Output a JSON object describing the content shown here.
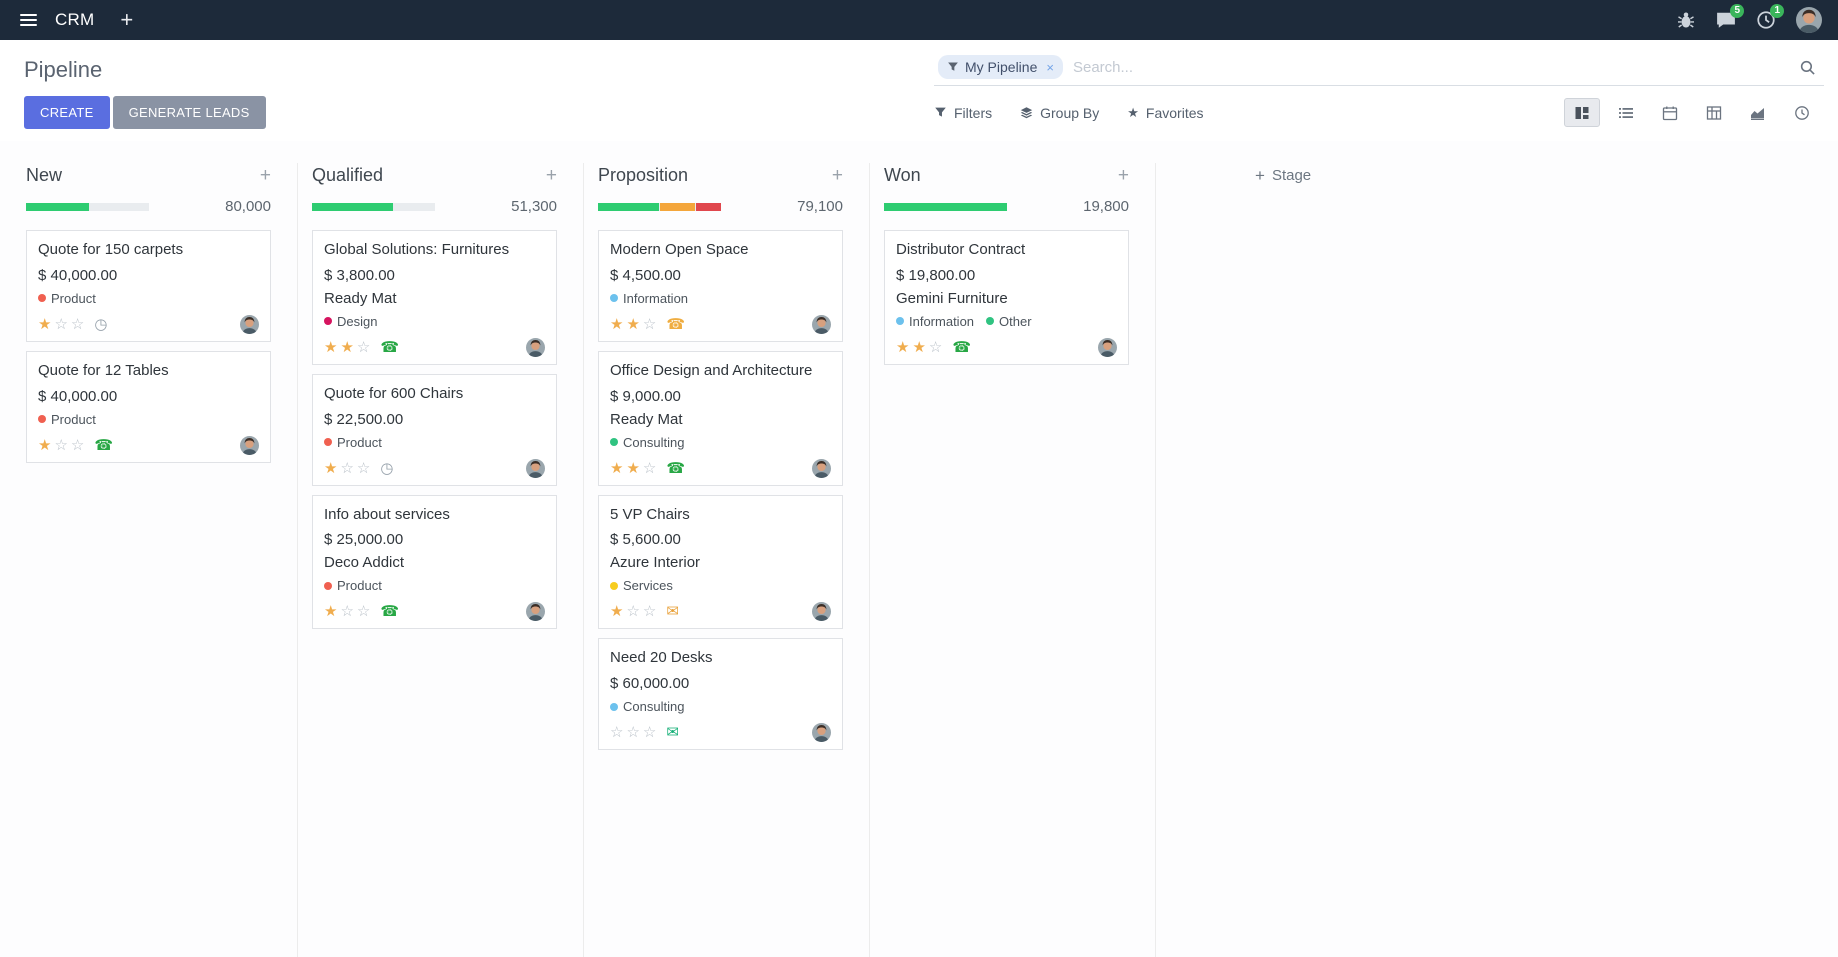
{
  "icons": {
    "plus": "+",
    "close": "×",
    "star": "★"
  },
  "colors": {
    "topbar": "#1d2a3a",
    "primary_button": "#5a6ee0",
    "secondary_button": "#8a93a4",
    "badge": "#3ab55b",
    "star_active": "#f0ad4e"
  },
  "topbar": {
    "app_name": "CRM",
    "messages_badge": "5",
    "activities_badge": "1"
  },
  "control_panel": {
    "title": "Pipeline",
    "create_label": "CREATE",
    "generate_leads_label": "GENERATE LEADS",
    "search": {
      "facet": "My Pipeline",
      "placeholder": "Search..."
    },
    "filters_label": "Filters",
    "group_by_label": "Group By",
    "favorites_label": "Favorites"
  },
  "board": {
    "add_stage_label": "Stage",
    "columns": [
      {
        "name": "New",
        "total": "80,000",
        "progress": [
          {
            "color": "#2ecc71",
            "pct": 51
          }
        ],
        "cards": [
          {
            "title": "Quote for 150 carpets",
            "amount": "$ 40,000.00",
            "tags": [
              {
                "label": "Product",
                "color": "#f06050"
              }
            ],
            "stars": 1,
            "activity": {
              "icon": "clock",
              "color": "#95a0aa"
            }
          },
          {
            "title": "Quote for 12 Tables",
            "amount": "$ 40,000.00",
            "tags": [
              {
                "label": "Product",
                "color": "#f06050"
              }
            ],
            "stars": 1,
            "activity": {
              "icon": "phone",
              "color": "#28a745"
            }
          }
        ]
      },
      {
        "name": "Qualified",
        "total": "51,300",
        "progress": [
          {
            "color": "#2ecc71",
            "pct": 66
          }
        ],
        "cards": [
          {
            "title": "Global Solutions: Furnitures",
            "amount": "$ 3,800.00",
            "partner": "Ready Mat",
            "tags": [
              {
                "label": "Design",
                "color": "#d6145f"
              }
            ],
            "stars": 2,
            "activity": {
              "icon": "phone",
              "color": "#28a745"
            }
          },
          {
            "title": "Quote for 600 Chairs",
            "amount": "$ 22,500.00",
            "tags": [
              {
                "label": "Product",
                "color": "#f06050"
              }
            ],
            "stars": 1,
            "activity": {
              "icon": "clock",
              "color": "#95a0aa"
            }
          },
          {
            "title": "Info about services",
            "amount": "$ 25,000.00",
            "partner": "Deco Addict",
            "tags": [
              {
                "label": "Product",
                "color": "#f06050"
              }
            ],
            "stars": 1,
            "activity": {
              "icon": "phone",
              "color": "#28a745"
            }
          }
        ]
      },
      {
        "name": "Proposition",
        "total": "79,100",
        "progress": [
          {
            "color": "#2ecc71",
            "pct": 50
          },
          {
            "color": "#f4a63b",
            "pct": 29
          },
          {
            "color": "#e0474d",
            "pct": 21
          }
        ],
        "cards": [
          {
            "title": "Modern Open Space",
            "amount": "$ 4,500.00",
            "tags": [
              {
                "label": "Information",
                "color": "#6cc1ed"
              }
            ],
            "stars": 2,
            "activity": {
              "icon": "phone",
              "color": "#efad41"
            }
          },
          {
            "title": "Office Design and Architecture",
            "amount": "$ 9,000.00",
            "partner": "Ready Mat",
            "tags": [
              {
                "label": "Consulting",
                "color": "#30c381"
              }
            ],
            "stars": 2,
            "activity": {
              "icon": "phone",
              "color": "#28a745"
            }
          },
          {
            "title": "5 VP Chairs",
            "amount": "$ 5,600.00",
            "partner": "Azure Interior",
            "tags": [
              {
                "label": "Services",
                "color": "#f7cd1f"
              }
            ],
            "stars": 1,
            "activity": {
              "icon": "envelope",
              "color": "#e9a23b"
            }
          },
          {
            "title": "Need 20 Desks",
            "amount": "$ 60,000.00",
            "tags": [
              {
                "label": "Consulting",
                "color": "#6cc1ed"
              }
            ],
            "stars": 0,
            "activity": {
              "icon": "envelope",
              "color": "#16b078"
            }
          }
        ]
      },
      {
        "name": "Won",
        "total": "19,800",
        "progress": [
          {
            "color": "#2ecc71",
            "pct": 100
          }
        ],
        "cards": [
          {
            "title": "Distributor Contract",
            "amount": "$ 19,800.00",
            "partner": "Gemini Furniture",
            "tags": [
              {
                "label": "Information",
                "color": "#6cc1ed"
              },
              {
                "label": "Other",
                "color": "#30c381"
              }
            ],
            "stars": 2,
            "activity": {
              "icon": "phone",
              "color": "#28a745"
            }
          }
        ]
      }
    ]
  }
}
